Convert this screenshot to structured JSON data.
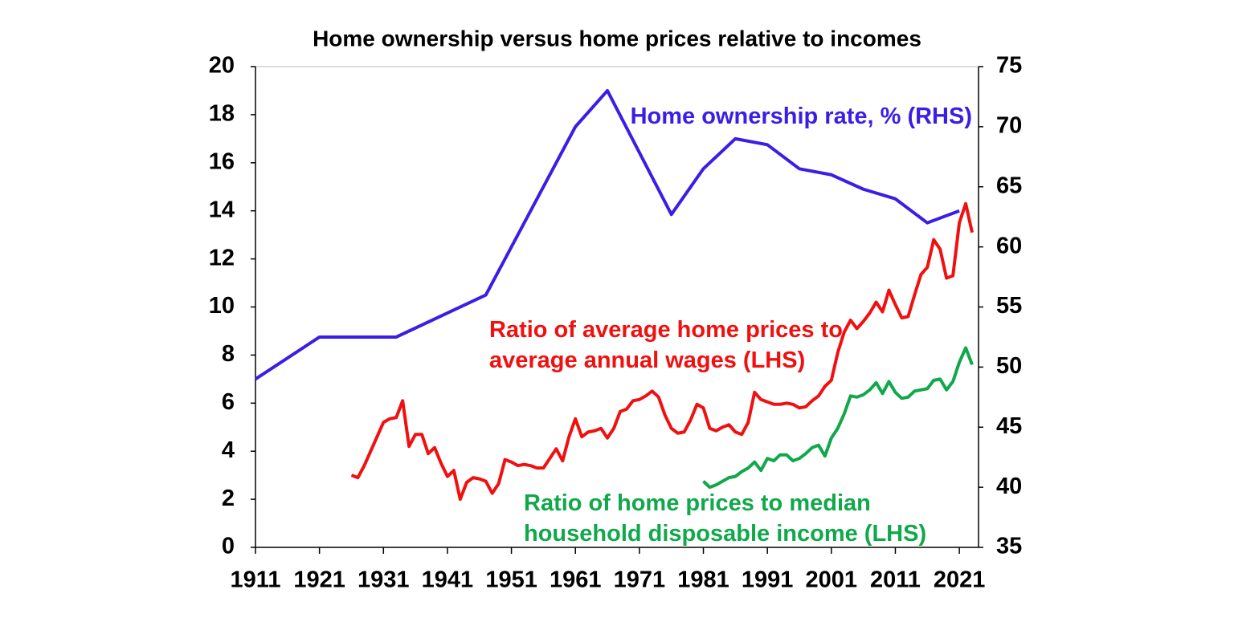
{
  "chart_data": {
    "type": "line",
    "title": "Home ownership versus home prices relative to incomes",
    "xlim": [
      1911,
      2024
    ],
    "xticks": [
      1911,
      1921,
      1931,
      1941,
      1951,
      1961,
      1971,
      1981,
      1991,
      2001,
      2011,
      2021
    ],
    "ylim": [
      0,
      20
    ],
    "yticks": [
      0,
      2,
      4,
      6,
      8,
      10,
      12,
      14,
      16,
      18,
      20
    ],
    "y2lim": [
      35,
      75
    ],
    "y2ticks": [
      35,
      40,
      45,
      50,
      55,
      60,
      65,
      70,
      75
    ],
    "grid": false,
    "series": [
      {
        "name": "Home ownership rate, % (RHS)",
        "color": "#3a1ee6",
        "axis": "y2",
        "x": [
          1911,
          1921,
          1933,
          1947,
          1961,
          1966,
          1976,
          1981,
          1986,
          1991,
          1996,
          2001,
          2006,
          2011,
          2016,
          2021
        ],
        "values": [
          49,
          52.5,
          52.5,
          56,
          70,
          73,
          62.7,
          66.5,
          69,
          68.5,
          66.5,
          66,
          64.8,
          64,
          62,
          63
        ]
      },
      {
        "name": "Ratio of average home prices to\naverage annual wages (LHS)",
        "color": "#f01010",
        "axis": "y",
        "x": [
          1926,
          1927,
          1928,
          1929,
          1930,
          1931,
          1932,
          1933,
          1934,
          1935,
          1936,
          1937,
          1938,
          1939,
          1940,
          1941,
          1942,
          1943,
          1944,
          1945,
          1946,
          1947,
          1948,
          1949,
          1950,
          1951,
          1952,
          1953,
          1954,
          1955,
          1956,
          1957,
          1958,
          1959,
          1960,
          1961,
          1962,
          1963,
          1964,
          1965,
          1966,
          1967,
          1968,
          1969,
          1970,
          1971,
          1972,
          1973,
          1974,
          1975,
          1976,
          1977,
          1978,
          1979,
          1980,
          1981,
          1982,
          1983,
          1984,
          1985,
          1986,
          1987,
          1988,
          1989,
          1990,
          1991,
          1992,
          1993,
          1994,
          1995,
          1996,
          1997,
          1998,
          1999,
          2000,
          2001,
          2002,
          2003,
          2004,
          2005,
          2006,
          2007,
          2008,
          2009,
          2010,
          2011,
          2012,
          2013,
          2014,
          2015,
          2016,
          2017,
          2018,
          2019,
          2020,
          2021,
          2022,
          2023
        ],
        "values": [
          3.0,
          2.9,
          3.4,
          4.0,
          4.6,
          5.2,
          5.35,
          5.4,
          6.1,
          4.2,
          4.7,
          4.7,
          3.9,
          4.15,
          3.5,
          2.95,
          3.2,
          2.0,
          2.7,
          2.9,
          2.85,
          2.75,
          2.25,
          2.65,
          3.65,
          3.55,
          3.4,
          3.45,
          3.4,
          3.3,
          3.3,
          3.7,
          4.1,
          3.6,
          4.6,
          5.35,
          4.6,
          4.8,
          4.85,
          4.95,
          4.55,
          4.95,
          5.65,
          5.75,
          6.1,
          6.15,
          6.3,
          6.5,
          6.25,
          5.5,
          4.95,
          4.75,
          4.8,
          5.3,
          5.95,
          5.8,
          4.95,
          4.85,
          5.0,
          5.1,
          4.8,
          4.7,
          5.2,
          6.45,
          6.15,
          6.05,
          5.95,
          5.95,
          6.0,
          5.95,
          5.8,
          5.85,
          6.1,
          6.3,
          6.7,
          6.95,
          8.1,
          8.95,
          9.45,
          9.1,
          9.4,
          9.75,
          10.2,
          9.8,
          10.7,
          10.1,
          9.55,
          9.6,
          10.5,
          11.35,
          11.65,
          12.8,
          12.4,
          11.2,
          11.3,
          13.5,
          14.3,
          13.1
        ]
      },
      {
        "name": "Ratio of home prices to median\nhousehold disposable income (LHS)",
        "color": "#10a84a",
        "axis": "y",
        "x": [
          1981,
          1982,
          1983,
          1984,
          1985,
          1986,
          1987,
          1988,
          1989,
          1990,
          1991,
          1992,
          1993,
          1994,
          1995,
          1996,
          1997,
          1998,
          1999,
          2000,
          2001,
          2002,
          2003,
          2004,
          2005,
          2006,
          2007,
          2008,
          2009,
          2010,
          2011,
          2012,
          2013,
          2014,
          2015,
          2016,
          2017,
          2018,
          2019,
          2020,
          2021,
          2022,
          2023
        ],
        "values": [
          2.75,
          2.5,
          2.6,
          2.75,
          2.9,
          2.95,
          3.15,
          3.3,
          3.55,
          3.2,
          3.7,
          3.6,
          3.85,
          3.85,
          3.6,
          3.7,
          3.9,
          4.15,
          4.25,
          3.8,
          4.55,
          4.95,
          5.55,
          6.3,
          6.25,
          6.35,
          6.55,
          6.85,
          6.4,
          6.9,
          6.45,
          6.2,
          6.25,
          6.5,
          6.55,
          6.6,
          6.95,
          7.0,
          6.55,
          6.9,
          7.7,
          8.3,
          7.6
        ]
      }
    ]
  }
}
